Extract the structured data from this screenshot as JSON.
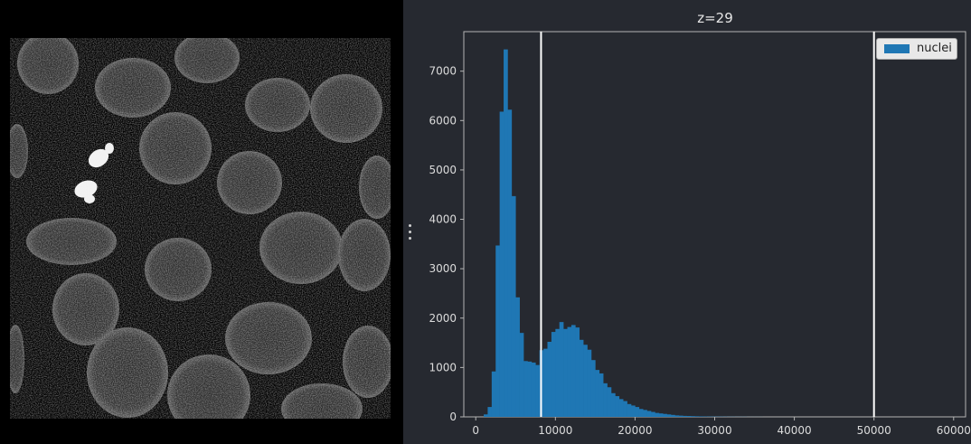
{
  "chart_data": {
    "type": "bar",
    "title": "z=29",
    "xlabel": "",
    "ylabel": "",
    "xlim": [
      -1500,
      61500
    ],
    "ylim": [
      0,
      7800
    ],
    "xticks": [
      {
        "value": 0,
        "label": "0"
      },
      {
        "value": 10000,
        "label": "10000"
      },
      {
        "value": 20000,
        "label": "20000"
      },
      {
        "value": 30000,
        "label": "30000"
      },
      {
        "value": 40000,
        "label": "40000"
      },
      {
        "value": 50000,
        "label": "50000"
      },
      {
        "value": 60000,
        "label": "60000"
      }
    ],
    "yticks": [
      {
        "value": 0,
        "label": "0"
      },
      {
        "value": 1000,
        "label": "1000"
      },
      {
        "value": 2000,
        "label": "2000"
      },
      {
        "value": 3000,
        "label": "3000"
      },
      {
        "value": 4000,
        "label": "4000"
      },
      {
        "value": 5000,
        "label": "5000"
      },
      {
        "value": 6000,
        "label": "6000"
      },
      {
        "value": 7000,
        "label": "7000"
      }
    ],
    "bin_start": 1000,
    "bin_width": 500,
    "series": [
      {
        "name": "nuclei",
        "color": "#1f77b4",
        "values": [
          50,
          200,
          920,
          3470,
          6180,
          7440,
          6220,
          4470,
          2420,
          1700,
          1130,
          1120,
          1100,
          1050,
          1350,
          1380,
          1520,
          1720,
          1780,
          1920,
          1780,
          1820,
          1860,
          1810,
          1560,
          1460,
          1360,
          1150,
          950,
          880,
          680,
          600,
          480,
          420,
          360,
          320,
          260,
          230,
          200,
          160,
          140,
          120,
          100,
          80,
          70,
          60,
          50,
          40,
          30,
          25,
          20,
          18,
          15,
          12,
          10,
          8,
          7,
          6,
          5,
          5,
          4,
          3,
          3,
          2,
          2,
          2,
          1,
          1,
          1,
          1
        ]
      }
    ],
    "vlines": [
      8200,
      50000
    ],
    "vline_color": "#ffffff",
    "legend": "top-right",
    "grid": false
  },
  "colors": {
    "panel_background": "#262930",
    "viewer_background": "#000000",
    "nuclei_fill": "#1f77b4"
  },
  "icons": {
    "dock_handle": "vertical-ellipsis-icon"
  }
}
